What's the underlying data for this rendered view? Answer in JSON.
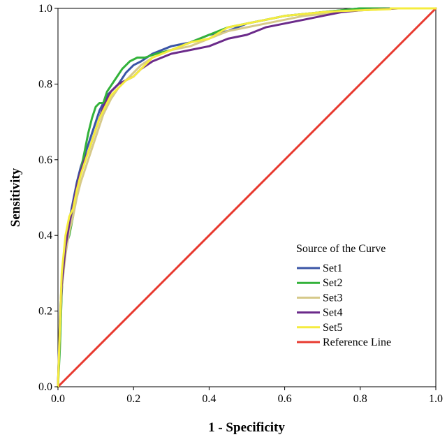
{
  "chart_data": {
    "type": "line",
    "title": "",
    "xlabel": "1 - Specificity",
    "ylabel": "Sensitivity",
    "xlim": [
      0,
      1
    ],
    "ylim": [
      0,
      1
    ],
    "x_ticks": [
      "0.0",
      "0.2",
      "0.4",
      "0.6",
      "0.8",
      "1.0"
    ],
    "y_ticks": [
      "0.0",
      "0.2",
      "0.4",
      "0.6",
      "0.8",
      "1.0"
    ],
    "grid": false,
    "legend": {
      "title": "Source of the Curve",
      "placement": "bottom-right"
    },
    "series": [
      {
        "name": "Set1",
        "color": "#3a55a6",
        "x": [
          0,
          0.005,
          0.01,
          0.02,
          0.03,
          0.04,
          0.05,
          0.06,
          0.07,
          0.08,
          0.09,
          0.1,
          0.11,
          0.12,
          0.13,
          0.14,
          0.16,
          0.18,
          0.2,
          0.22,
          0.25,
          0.3,
          0.35,
          0.4,
          0.45,
          0.5,
          0.55,
          0.6,
          0.65,
          0.7,
          0.75,
          0.8,
          0.9,
          1.0
        ],
        "y": [
          0,
          0.18,
          0.28,
          0.38,
          0.44,
          0.49,
          0.54,
          0.58,
          0.61,
          0.64,
          0.67,
          0.7,
          0.73,
          0.75,
          0.77,
          0.78,
          0.8,
          0.83,
          0.85,
          0.86,
          0.88,
          0.9,
          0.91,
          0.93,
          0.94,
          0.96,
          0.97,
          0.98,
          0.985,
          0.99,
          0.995,
          1.0,
          1.0,
          1.0
        ]
      },
      {
        "name": "Set2",
        "color": "#33b23a",
        "x": [
          0,
          0.005,
          0.01,
          0.015,
          0.02,
          0.03,
          0.04,
          0.05,
          0.06,
          0.07,
          0.08,
          0.09,
          0.1,
          0.11,
          0.12,
          0.13,
          0.15,
          0.17,
          0.19,
          0.21,
          0.23,
          0.26,
          0.3,
          0.35,
          0.4,
          0.45,
          0.5,
          0.55,
          0.6,
          0.65,
          0.7,
          0.75,
          0.8,
          0.9,
          1.0
        ],
        "y": [
          0,
          0.1,
          0.25,
          0.33,
          0.37,
          0.4,
          0.45,
          0.53,
          0.57,
          0.62,
          0.67,
          0.71,
          0.74,
          0.75,
          0.75,
          0.78,
          0.81,
          0.84,
          0.86,
          0.87,
          0.87,
          0.88,
          0.89,
          0.91,
          0.93,
          0.95,
          0.96,
          0.97,
          0.98,
          0.985,
          0.99,
          0.995,
          1.0,
          1.0,
          1.0
        ]
      },
      {
        "name": "Set3",
        "color": "#d6c98a",
        "x": [
          0,
          0.005,
          0.01,
          0.02,
          0.03,
          0.04,
          0.05,
          0.06,
          0.07,
          0.08,
          0.09,
          0.1,
          0.11,
          0.12,
          0.13,
          0.14,
          0.16,
          0.18,
          0.2,
          0.22,
          0.25,
          0.3,
          0.35,
          0.4,
          0.45,
          0.5,
          0.55,
          0.6,
          0.65,
          0.7,
          0.75,
          0.8,
          0.9,
          1.0
        ],
        "y": [
          0,
          0.15,
          0.26,
          0.35,
          0.41,
          0.45,
          0.5,
          0.54,
          0.57,
          0.6,
          0.63,
          0.66,
          0.69,
          0.72,
          0.74,
          0.76,
          0.79,
          0.81,
          0.83,
          0.85,
          0.87,
          0.89,
          0.9,
          0.92,
          0.94,
          0.95,
          0.96,
          0.97,
          0.98,
          0.985,
          0.99,
          0.995,
          1.0,
          1.0
        ]
      },
      {
        "name": "Set4",
        "color": "#6b2a8a",
        "x": [
          0,
          0.005,
          0.01,
          0.02,
          0.03,
          0.04,
          0.05,
          0.06,
          0.07,
          0.08,
          0.09,
          0.1,
          0.11,
          0.12,
          0.13,
          0.14,
          0.16,
          0.18,
          0.2,
          0.22,
          0.25,
          0.3,
          0.35,
          0.4,
          0.45,
          0.5,
          0.55,
          0.6,
          0.65,
          0.7,
          0.75,
          0.8,
          0.9,
          1.0
        ],
        "y": [
          0,
          0.17,
          0.27,
          0.37,
          0.43,
          0.48,
          0.53,
          0.57,
          0.6,
          0.62,
          0.65,
          0.68,
          0.71,
          0.74,
          0.76,
          0.78,
          0.8,
          0.81,
          0.82,
          0.84,
          0.86,
          0.88,
          0.89,
          0.9,
          0.92,
          0.93,
          0.95,
          0.96,
          0.97,
          0.98,
          0.99,
          0.995,
          1.0,
          1.0
        ]
      },
      {
        "name": "Set5",
        "color": "#f5ec3f",
        "x": [
          0,
          0.005,
          0.01,
          0.02,
          0.03,
          0.04,
          0.05,
          0.06,
          0.07,
          0.08,
          0.09,
          0.1,
          0.11,
          0.12,
          0.13,
          0.14,
          0.16,
          0.18,
          0.2,
          0.22,
          0.25,
          0.3,
          0.35,
          0.4,
          0.45,
          0.5,
          0.55,
          0.6,
          0.65,
          0.7,
          0.75,
          0.8,
          0.88,
          0.88,
          1.0
        ],
        "y": [
          0,
          0.16,
          0.3,
          0.4,
          0.45,
          0.47,
          0.52,
          0.56,
          0.59,
          0.62,
          0.65,
          0.68,
          0.71,
          0.73,
          0.75,
          0.77,
          0.79,
          0.81,
          0.82,
          0.84,
          0.87,
          0.89,
          0.91,
          0.92,
          0.95,
          0.96,
          0.97,
          0.98,
          0.985,
          0.99,
          0.993,
          0.995,
          0.998,
          1.0,
          1.0
        ]
      },
      {
        "name": "Reference Line",
        "color": "#e83a30",
        "x": [
          0,
          1
        ],
        "y": [
          0,
          1
        ]
      }
    ]
  }
}
